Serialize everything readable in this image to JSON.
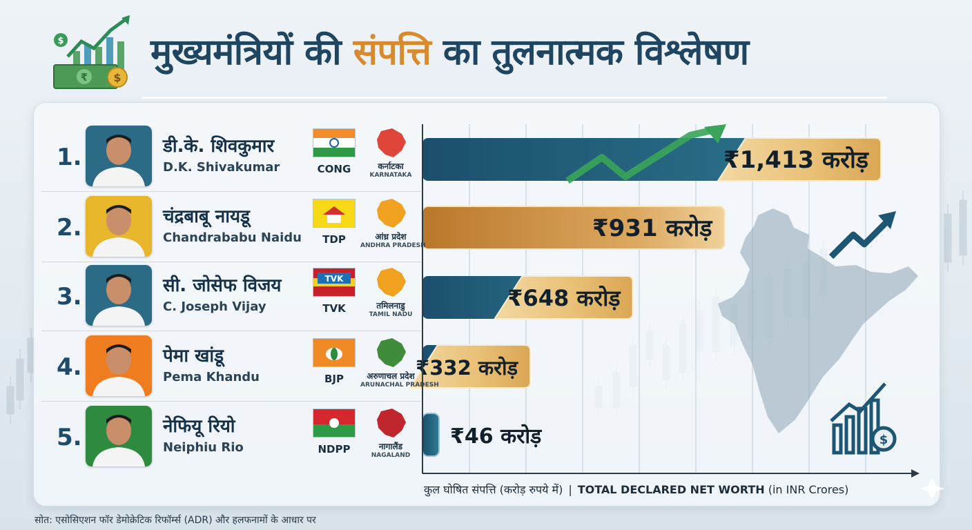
{
  "title": {
    "part1": "मुख्यमंत्रियों की",
    "highlight": "संपत्ति",
    "part2": "का तुलनात्मक विश्लेषण"
  },
  "rows": [
    {
      "rank": "1.",
      "name_hi": "डी.के. शिवकुमार",
      "name_en": "D.K. Shivakumar",
      "party": "CONG",
      "state_hi": "कर्नाटका",
      "state_en": "KARNATAKA",
      "photo_bg": "#2b6b86",
      "map_color": "#e0453a"
    },
    {
      "rank": "2.",
      "name_hi": "चंद्रबाबू नायडू",
      "name_en": "Chandrababu Naidu",
      "party": "TDP",
      "state_hi": "आंध्र प्रदेश",
      "state_en": "ANDHRA PRADESH",
      "photo_bg": "#e8b62a",
      "map_color": "#f0a11f"
    },
    {
      "rank": "3.",
      "name_hi": "सी. जोसेफ विजय",
      "name_en": "C. Joseph Vijay",
      "party": "TVK",
      "state_hi": "तमिलनाडु",
      "state_en": "TAMIL NADU",
      "photo_bg": "#2b6b86",
      "map_color": "#f0a11f"
    },
    {
      "rank": "4.",
      "name_hi": "पेमा खांडू",
      "name_en": "Pema Khandu",
      "party": "BJP",
      "state_hi": "अरुणाचल प्रदेश",
      "state_en": "ARUNACHAL PRADESH",
      "photo_bg": "#ef7d1f",
      "map_color": "#3f8d3a"
    },
    {
      "rank": "5.",
      "name_hi": "नेफियू रियो",
      "name_en": "Neiphiu Rio",
      "party": "NDPP",
      "state_hi": "नागालैंड",
      "state_en": "NAGALAND",
      "photo_bg": "#2d8a3e",
      "map_color": "#c0262e"
    }
  ],
  "chart_data": {
    "type": "bar",
    "orientation": "horizontal",
    "categories": [
      "D.K. Shivakumar",
      "Chandrababu Naidu",
      "C. Joseph Vijay",
      "Pema Khandu",
      "Neiphiu Rio"
    ],
    "values": [
      1413,
      931,
      648,
      332,
      46
    ],
    "value_labels": [
      "₹1,413 करोड़",
      "₹931 करोड़",
      "₹648 करोड़",
      "₹332 करोड़",
      "₹46 करोड़"
    ],
    "xlabel_hi": "कुल घोषित संपत्ति (करोड़ रुपये में)",
    "xlabel_en_bold": "TOTAL DECLARED NET WORTH",
    "xlabel_en_unit": "(in INR Crores)",
    "grid": true,
    "colors": {
      "teal": "#1f5f7f",
      "gold": "#e9c27a",
      "orange": "#c98a3a"
    }
  },
  "source": "सोत: एसोसिएशन फॉर डेमोक्रेटिक रिफॉर्म्स (ADR) और हलफनामों के आधार पर",
  "icons": [
    "money-growth-icon",
    "trend-arrow-icon",
    "india-map-icon",
    "growth-chart-coin-icon",
    "sparkle-icon"
  ]
}
